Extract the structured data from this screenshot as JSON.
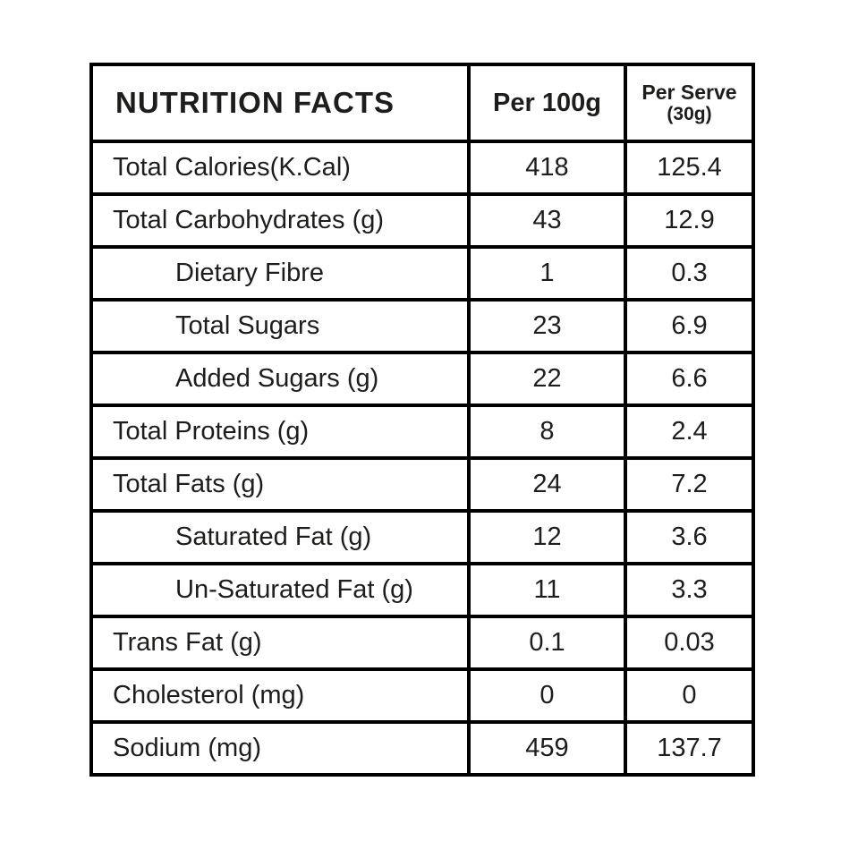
{
  "table": {
    "header": {
      "title": "NUTRITION FACTS",
      "per_100g_label": "Per 100g",
      "per_serve_label": "Per Serve",
      "per_serve_sub": "(30g)"
    },
    "rows": [
      {
        "label": "Total Calories(K.Cal)",
        "per_100g": "418",
        "per_serve": "125.4",
        "indent": false
      },
      {
        "label": "Total Carbohydrates (g)",
        "per_100g": "43",
        "per_serve": "12.9",
        "indent": false
      },
      {
        "label": "Dietary Fibre",
        "per_100g": "1",
        "per_serve": "0.3",
        "indent": true
      },
      {
        "label": "Total Sugars",
        "per_100g": "23",
        "per_serve": "6.9",
        "indent": true
      },
      {
        "label": "Added Sugars (g)",
        "per_100g": "22",
        "per_serve": "6.6",
        "indent": true
      },
      {
        "label": "Total Proteins (g)",
        "per_100g": "8",
        "per_serve": "2.4",
        "indent": false
      },
      {
        "label": "Total Fats (g)",
        "per_100g": "24",
        "per_serve": "7.2",
        "indent": false
      },
      {
        "label": "Saturated Fat (g)",
        "per_100g": "12",
        "per_serve": "3.6",
        "indent": true
      },
      {
        "label": "Un-Saturated Fat (g)",
        "per_100g": "11",
        "per_serve": "3.3",
        "indent": true
      },
      {
        "label": "Trans Fat (g)",
        "per_100g": "0.1",
        "per_serve": "0.03",
        "indent": false
      },
      {
        "label": "Cholesterol (mg)",
        "per_100g": "0",
        "per_serve": "0",
        "indent": false
      },
      {
        "label": "Sodium (mg)",
        "per_100g": "459",
        "per_serve": "137.7",
        "indent": false
      }
    ],
    "colors": {
      "border": "#000000",
      "text": "#1d1d1b",
      "background": "#ffffff"
    }
  }
}
